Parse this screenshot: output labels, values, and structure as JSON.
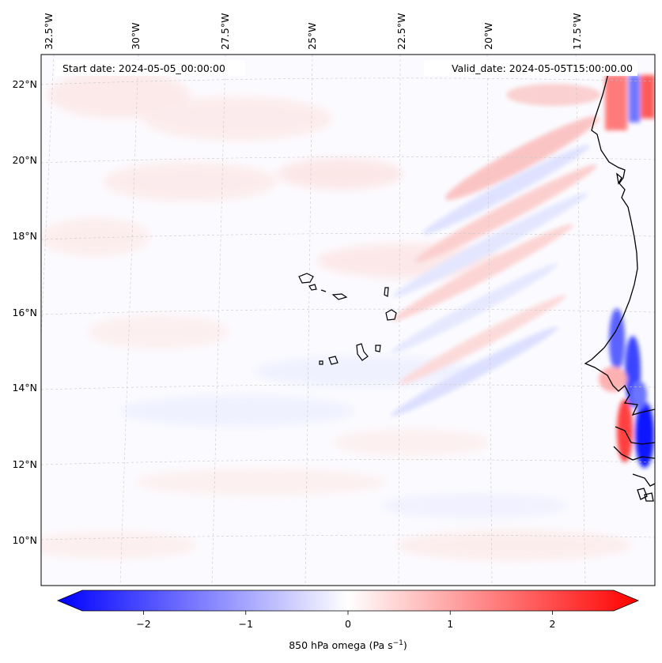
{
  "map": {
    "start_date_label": "Start date: 2024-05-05_00:00:00",
    "valid_date_label": "Valid_date: 2024-05-05T15:00:00.00",
    "lon_labels": [
      "32.5°W",
      "30°W",
      "27.5°W",
      "25°W",
      "22.5°W",
      "20°W",
      "17.5°W"
    ],
    "lat_labels": [
      "22°N",
      "20°N",
      "18°N",
      "16°N",
      "14°N",
      "12°N",
      "10°N"
    ],
    "features": [
      "Cape Verde islands",
      "West African coastline"
    ]
  },
  "colorbar": {
    "label_text": "850 hPa omega (Pa s",
    "label_sup": "−1",
    "label_end": ")",
    "tick_labels": [
      "−2",
      "−1",
      "0",
      "1",
      "2"
    ],
    "tick_values": [
      -2,
      -1,
      0,
      1,
      2
    ],
    "range": [
      -2.6,
      2.6
    ],
    "cmap": "bwr",
    "colors": {
      "low": "#0000ff",
      "mid": "#ffffff",
      "high": "#ff0000"
    }
  }
}
